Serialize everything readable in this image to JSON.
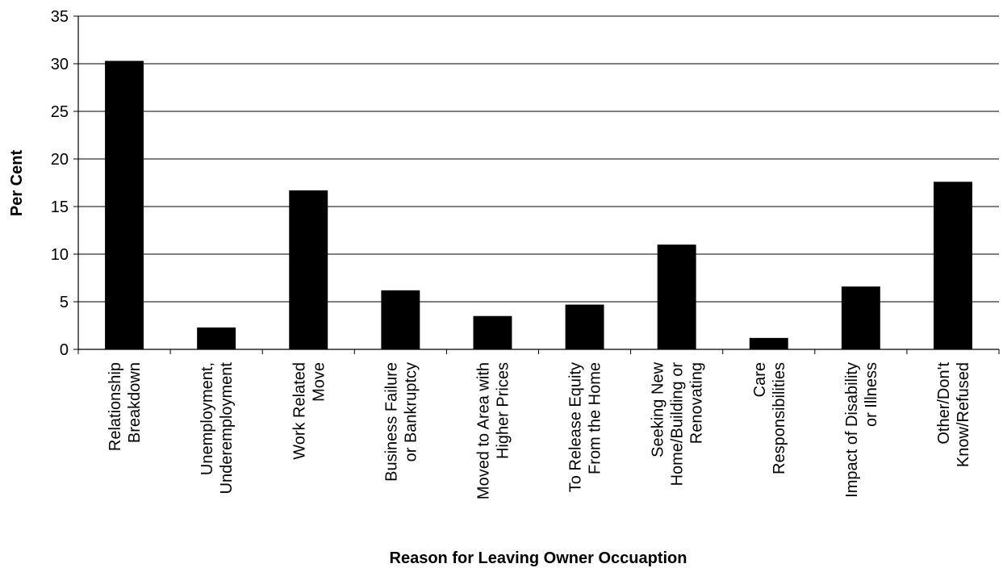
{
  "chart_data": {
    "type": "bar",
    "title": "",
    "xlabel": "Reason for Leaving Owner Occuaption",
    "ylabel": "Per Cent",
    "ylim": [
      0,
      35
    ],
    "yticks": [
      0,
      5,
      10,
      15,
      20,
      25,
      30,
      35
    ],
    "grid": true,
    "legend": "none",
    "bar_color": "#000000",
    "categories": [
      [
        "Relationship",
        "Breakdown"
      ],
      [
        "Unemployment,",
        "Underemployment"
      ],
      [
        "Work Related",
        "Move"
      ],
      [
        "Business Failure",
        "or Bankruptcy"
      ],
      [
        "Moved to Area with",
        "Higher Prices"
      ],
      [
        "To Release Equity",
        "From the Home"
      ],
      [
        "Seeking New",
        "Home/Building or",
        "Renovating"
      ],
      [
        "Care",
        "Responsibilities"
      ],
      [
        "Impact of Disability",
        "or Illness"
      ],
      [
        "Other/Don't",
        "Know/Refused"
      ]
    ],
    "values": [
      30.3,
      2.3,
      16.7,
      6.2,
      3.5,
      4.7,
      11.0,
      1.2,
      6.6,
      17.6
    ]
  }
}
